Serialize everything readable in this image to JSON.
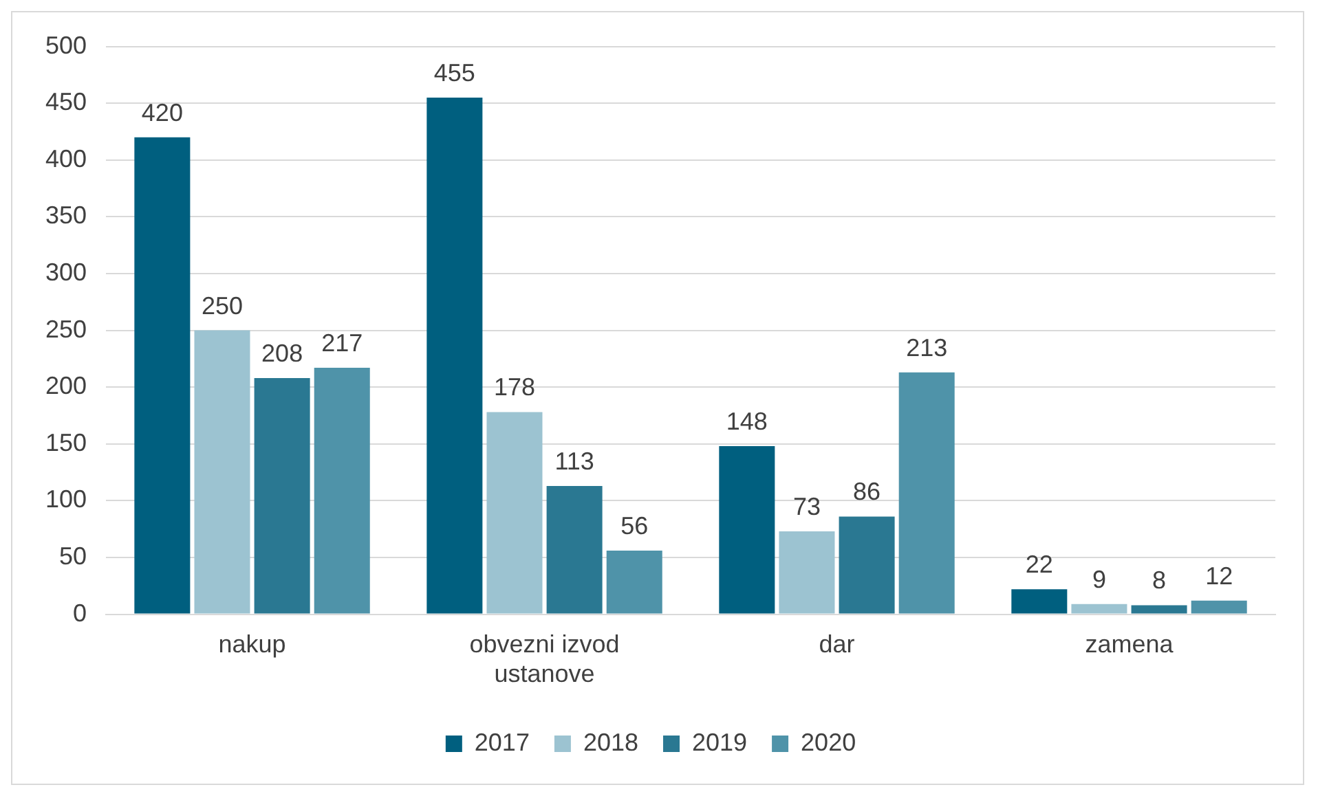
{
  "chart_data": {
    "type": "bar",
    "categories": [
      "nakup",
      "obvezni izvod ustanove",
      "dar",
      "zamena"
    ],
    "series": [
      {
        "name": "2017",
        "color": "#005f7f",
        "values": [
          420,
          455,
          148,
          22
        ]
      },
      {
        "name": "2018",
        "color": "#9cc3d1",
        "values": [
          250,
          178,
          73,
          9
        ]
      },
      {
        "name": "2019",
        "color": "#2a7892",
        "values": [
          208,
          113,
          86,
          8
        ]
      },
      {
        "name": "2020",
        "color": "#4f93a9",
        "values": [
          217,
          56,
          213,
          12
        ]
      }
    ],
    "ylim": [
      0,
      500
    ],
    "yticks": [
      0,
      50,
      100,
      150,
      200,
      250,
      300,
      350,
      400,
      450,
      500
    ],
    "grid": "y",
    "legend": "bottom",
    "data_labels": true
  }
}
